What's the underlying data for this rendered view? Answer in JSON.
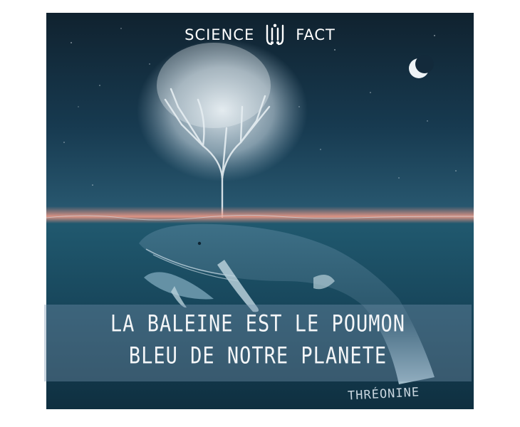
{
  "brand": {
    "left_word": "SCIENCE",
    "right_word": "FACT",
    "logo_icon": "science-fact-logo-icon"
  },
  "caption": {
    "line1": "LA BALEINE EST LE POUMON",
    "line2": "BLEU DE NOTRE PLANETE"
  },
  "signature": "THRÉONINE",
  "colors": {
    "sky_top": "#0f2233",
    "sky_bottom": "#1f4d66",
    "horizon_glow": "#e88a7a",
    "sea": "#1a5066",
    "whale": "#7fa8bb",
    "text": "#ffffff"
  },
  "elements": {
    "moon": "crescent-moon-icon",
    "tree": "tree-of-light",
    "whale_adult": "humpback-whale",
    "whale_calf": "whale-calf"
  }
}
